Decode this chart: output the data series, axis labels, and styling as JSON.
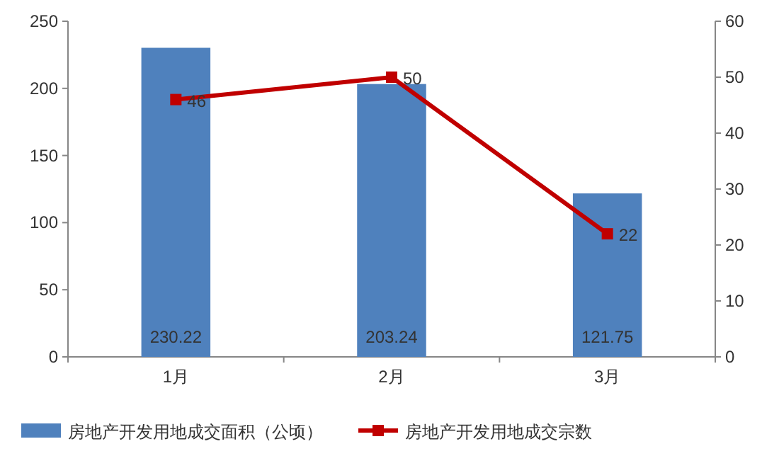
{
  "chart_data": {
    "type": "bar",
    "categories": [
      "1月",
      "2月",
      "3月"
    ],
    "series": [
      {
        "name": "房地产开发用地成交面积（公顷）",
        "color": "#4f81bd",
        "values": [
          230.22,
          203.24,
          121.75
        ]
      },
      {
        "name": "房地产开发用地成交宗数",
        "type": "line",
        "axis": "y2",
        "color": "#c00000",
        "values": [
          46,
          50,
          22
        ]
      }
    ],
    "ylim": [
      0,
      250
    ],
    "yticks": [
      0,
      50,
      100,
      150,
      200,
      250
    ],
    "y2lim": [
      0,
      60
    ],
    "y2ticks": [
      0,
      10,
      20,
      30,
      40,
      50,
      60
    ],
    "data_labels": true,
    "legend": "bottom",
    "marker": "square",
    "grid": false
  }
}
